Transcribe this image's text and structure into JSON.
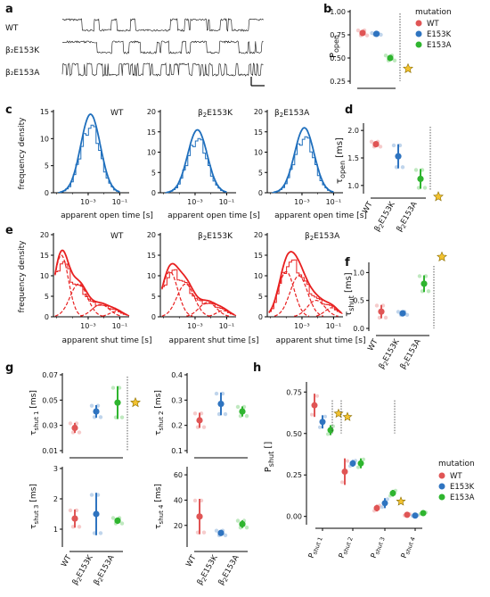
{
  "panel_letters": [
    "a",
    "b",
    "c",
    "d",
    "e",
    "f",
    "g",
    "h"
  ],
  "colors": {
    "WT": "#e05555",
    "E153K": "#2f74c0",
    "E153A": "#2fb52f",
    "fit_open": "#1f6fbd",
    "fit_shut": "#e82020",
    "star": "#f2c230",
    "axis": "#000000"
  },
  "trace_labels": [
    "WT",
    "β₂E153K",
    "β₂E153A"
  ],
  "legend": {
    "title": "mutation",
    "items": [
      "WT",
      "E153K",
      "E153A"
    ]
  },
  "chart_data": [
    {
      "panel": "a",
      "type": "line",
      "description_free": true,
      "series": [
        {
          "name": "WT"
        },
        {
          "name": "β₂E153K"
        },
        {
          "name": "β₂E153A"
        }
      ]
    },
    {
      "panel": "b",
      "type": "scatter",
      "ylabel": "P_open",
      "yticks": [
        "0.25",
        "0.50",
        "0.75",
        "1.00"
      ],
      "ylim": [
        0.25,
        1.0
      ],
      "series": [
        {
          "name": "WT",
          "mean": 0.77,
          "err": 0.03
        },
        {
          "name": "E153K",
          "mean": 0.76,
          "err": 0.01
        },
        {
          "name": "E153A",
          "mean": 0.5,
          "err": 0.03
        }
      ],
      "significant": [
        "E153A"
      ]
    },
    {
      "panel": "c",
      "type": "line",
      "xlabel": "apparent open time [s]",
      "ylabel": "frequency density",
      "subplots": [
        {
          "title": "WT",
          "yticks": [
            "0",
            "5",
            "10",
            "15"
          ],
          "ymax": 15,
          "peak": 14.5
        },
        {
          "title": "β₂E153K",
          "yticks": [
            "0",
            "5",
            "10",
            "15",
            "20"
          ],
          "ymax": 20,
          "peak": 15.5
        },
        {
          "title": "β₂E153A",
          "yticks": [
            "0",
            "5",
            "10",
            "15",
            "20"
          ],
          "ymax": 20,
          "peak": 16
        }
      ],
      "xticks": [
        "10⁻³",
        "10⁻¹"
      ]
    },
    {
      "panel": "d",
      "type": "scatter",
      "ylabel": "τ_open [ms]",
      "yticks": [
        "1.0",
        "1.5",
        "2.0"
      ],
      "ylim": [
        0.9,
        2.1
      ],
      "categories": [
        "WT",
        "β₂E153K",
        "β₂E153A"
      ],
      "series": [
        {
          "name": "WT",
          "mean": 1.75,
          "err": 0.05
        },
        {
          "name": "E153K",
          "mean": 1.53,
          "err": 0.22
        },
        {
          "name": "E153A",
          "mean": 1.12,
          "err": 0.18
        }
      ],
      "significant": [
        "E153A"
      ]
    },
    {
      "panel": "e",
      "type": "line",
      "xlabel": "apparent shut time [s]",
      "ylabel": "frequency density",
      "subplots": [
        {
          "title": "WT",
          "yticks": [
            "0",
            "5",
            "10",
            "15",
            "20"
          ],
          "ymax": 20
        },
        {
          "title": "β₂E153K",
          "yticks": [
            "0",
            "5",
            "10",
            "15",
            "20"
          ],
          "ymax": 20
        },
        {
          "title": "β₂E153A",
          "yticks": [
            "0",
            "5",
            "10",
            "15",
            "20"
          ],
          "ymax": 20
        }
      ],
      "xticks": [
        "10⁻³",
        "10⁻¹"
      ]
    },
    {
      "panel": "f",
      "type": "scatter",
      "ylabel": "τ_shut [ms]",
      "yticks": [
        "0.0",
        "0.5",
        "1.0"
      ],
      "ylim": [
        0,
        1.15
      ],
      "categories": [
        "WT",
        "β₂E153K",
        "β₂E153A"
      ],
      "series": [
        {
          "name": "WT",
          "mean": 0.3,
          "err": 0.12
        },
        {
          "name": "E153K",
          "mean": 0.27,
          "err": 0.03
        },
        {
          "name": "E153A",
          "mean": 0.8,
          "err": 0.15
        }
      ],
      "significant": [
        "E153A"
      ]
    },
    {
      "panel": "g",
      "type": "scatter",
      "categories": [
        "WT",
        "β₂E153K",
        "β₂E153A"
      ],
      "subplots": [
        {
          "ylabel": "τ_shut 1 [ms]",
          "yticks": [
            "0.01",
            "0.03",
            "0.05",
            "0.07"
          ],
          "ylim": [
            0.01,
            0.07
          ],
          "series": [
            {
              "name": "WT",
              "mean": 0.028,
              "err": 0.004
            },
            {
              "name": "E153K",
              "mean": 0.041,
              "err": 0.005
            },
            {
              "name": "E153A",
              "mean": 0.048,
              "err": 0.013
            }
          ],
          "significant": [
            "E153A"
          ]
        },
        {
          "ylabel": "τ_shut 2 [ms]",
          "yticks": [
            "0.1",
            "0.2",
            "0.3",
            "0.4"
          ],
          "ylim": [
            0.1,
            0.4
          ],
          "series": [
            {
              "name": "WT",
              "mean": 0.22,
              "err": 0.03
            },
            {
              "name": "E153K",
              "mean": 0.285,
              "err": 0.045
            },
            {
              "name": "E153A",
              "mean": 0.255,
              "err": 0.02
            }
          ]
        },
        {
          "ylabel": "τ_shut 3 [ms]",
          "yticks": [
            "1",
            "2",
            "3"
          ],
          "ylim": [
            0.5,
            3
          ],
          "series": [
            {
              "name": "WT",
              "mean": 1.35,
              "err": 0.3
            },
            {
              "name": "E153K",
              "mean": 1.5,
              "err": 0.7
            },
            {
              "name": "E153A",
              "mean": 1.28,
              "err": 0.1
            }
          ]
        },
        {
          "ylabel": "τ_shut 4 [ms]",
          "yticks": [
            "20",
            "40",
            "60"
          ],
          "ylim": [
            5,
            65
          ],
          "series": [
            {
              "name": "WT",
              "mean": 27,
              "err": 14
            },
            {
              "name": "E153K",
              "mean": 14,
              "err": 2
            },
            {
              "name": "E153A",
              "mean": 21,
              "err": 3
            }
          ]
        }
      ]
    },
    {
      "panel": "h",
      "type": "scatter",
      "ylabel": "P_shut []",
      "yticks": [
        "0.00",
        "0.25",
        "0.50",
        "0.75"
      ],
      "ylim": [
        -0.05,
        0.8
      ],
      "categories": [
        "P_shut 1",
        "P_shut 2",
        "P_shut 3",
        "P_shut 4"
      ],
      "series": [
        {
          "name": "WT",
          "values": [
            0.67,
            0.27,
            0.05,
            0.01
          ],
          "errs": [
            0.07,
            0.08,
            0.02,
            0.005
          ]
        },
        {
          "name": "E153K",
          "values": [
            0.57,
            0.32,
            0.08,
            0.005
          ],
          "errs": [
            0.04,
            0.02,
            0.03,
            0.003
          ]
        },
        {
          "name": "E153A",
          "values": [
            0.52,
            0.32,
            0.14,
            0.02
          ],
          "errs": [
            0.03,
            0.03,
            0.02,
            0.005
          ]
        }
      ],
      "significant": [
        "P_shut 1",
        "P_shut 3"
      ]
    }
  ],
  "text": {
    "mutation": "mutation",
    "popen_label": "P",
    "popen_sub": "open",
    "fd": "frequency density",
    "open_x": "apparent open time [s]",
    "shut_x": "apparent shut time [s]",
    "tau": "τ",
    "tau_open_sub": "open",
    "tau_shut_sub": "shut",
    "ms": " [ms]",
    "pshut_label": "P",
    "pshut_sub": "shut",
    "pshut_unit": " []"
  }
}
